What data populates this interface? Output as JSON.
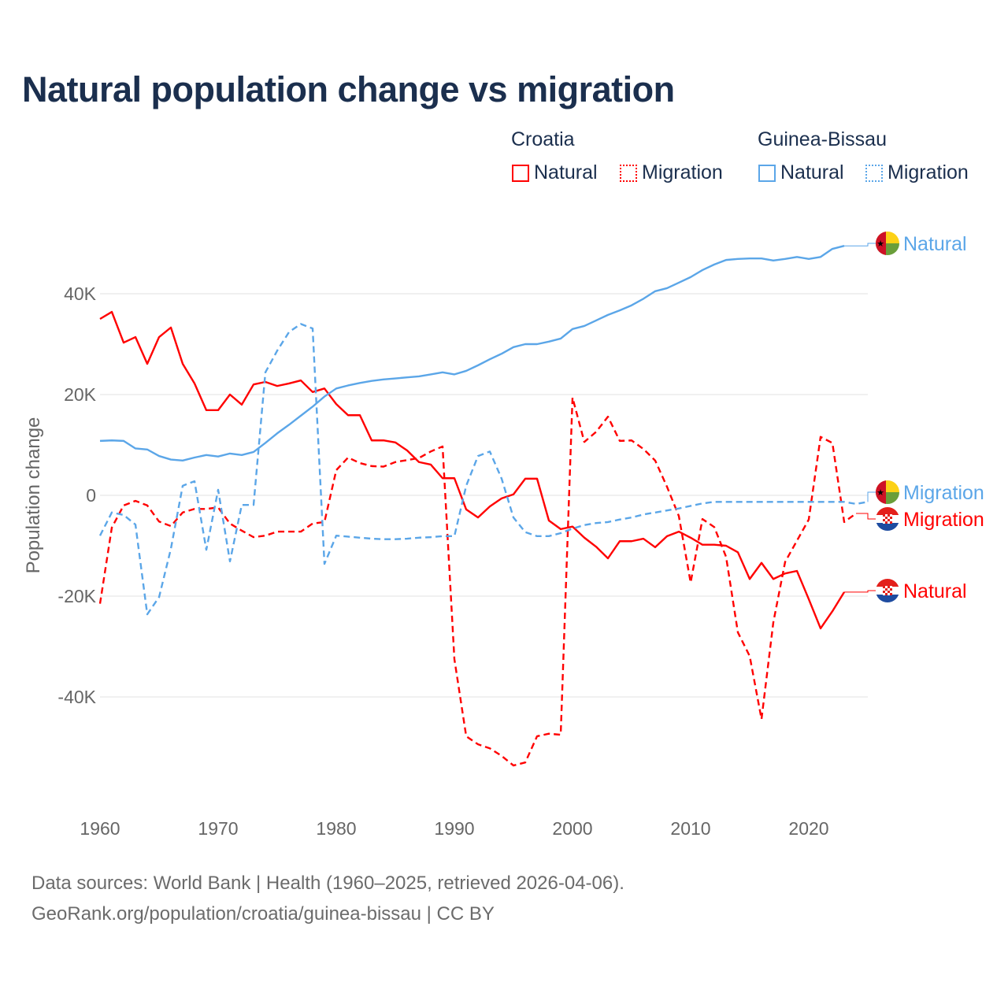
{
  "title": "Natural population change vs migration",
  "legend": {
    "groups": [
      {
        "name": "Croatia",
        "color": "#ff0000",
        "items": [
          "Natural",
          "Migration"
        ]
      },
      {
        "name": "Guinea-Bissau",
        "color": "#5ba6e8",
        "items": [
          "Natural",
          "Migration"
        ]
      }
    ]
  },
  "footer": {
    "line1": "Data sources: World Bank | Health (1960–2025, retrieved 2026-04-06).",
    "line2": "GeoRank.org/population/croatia/guinea-bissau | CC BY"
  },
  "chart_data": {
    "type": "line",
    "title": "Natural population change vs migration",
    "xlabel": "",
    "ylabel": "Population change",
    "xlim": [
      1960,
      2025
    ],
    "x_ticks": [
      1960,
      1970,
      1980,
      1990,
      2000,
      2010,
      2020
    ],
    "y_ticks": [
      {
        "v": 40000,
        "label": "40K"
      },
      {
        "v": 20000,
        "label": "20K"
      },
      {
        "v": 0,
        "label": "0"
      },
      {
        "v": -20000,
        "label": "-20K"
      },
      {
        "v": -40000,
        "label": "-40K"
      }
    ],
    "grid": true,
    "series": [
      {
        "name": "Croatia Natural",
        "country": "Croatia",
        "kind": "Natural",
        "color": "#ff0000",
        "dashed": false,
        "end_label": "Natural",
        "start_year": 1960,
        "values": [
          35000,
          36400,
          30300,
          31400,
          26100,
          31400,
          33300,
          26100,
          22200,
          16900,
          16900,
          20000,
          18000,
          22000,
          22500,
          21700,
          22200,
          22800,
          20500,
          21200,
          18100,
          15900,
          15900,
          10900,
          10900,
          10500,
          8900,
          6600,
          6100,
          3400,
          3400,
          -2800,
          -4400,
          -2200,
          -600,
          200,
          3300,
          3300,
          -5000,
          -6700,
          -6200,
          -8400,
          -10200,
          -12500,
          -9100,
          -9100,
          -8600,
          -10300,
          -8100,
          -7200,
          -8400,
          -9800,
          -9800,
          -10000,
          -11300,
          -16600,
          -13400,
          -16600,
          -15500,
          -15000,
          -20600,
          -26400,
          -23000,
          -19200
        ]
      },
      {
        "name": "Croatia Migration",
        "country": "Croatia",
        "kind": "Migration",
        "color": "#ff0000",
        "dashed": true,
        "end_label": "Migration",
        "start_year": 1960,
        "values": [
          -21500,
          -6400,
          -2000,
          -1100,
          -2000,
          -5200,
          -6100,
          -3400,
          -2700,
          -2700,
          -2400,
          -5600,
          -7000,
          -8300,
          -8000,
          -7200,
          -7200,
          -7200,
          -5600,
          -5300,
          5000,
          7500,
          6400,
          5800,
          5700,
          6600,
          7000,
          7400,
          8700,
          9700,
          -32500,
          -47800,
          -49400,
          -50200,
          -51700,
          -53600,
          -53000,
          -47800,
          -47300,
          -47500,
          19400,
          10600,
          12600,
          15600,
          10800,
          10900,
          9200,
          6900,
          1700,
          -4100,
          -17300,
          -4700,
          -6300,
          -12200,
          -27200,
          -31900,
          -44400,
          -25200,
          -13200,
          -9000,
          -4800,
          11600,
          10400,
          -5300,
          -3600
        ]
      },
      {
        "name": "Guinea-Bissau Natural",
        "country": "Guinea-Bissau",
        "kind": "Natural",
        "color": "#5ba6e8",
        "dashed": false,
        "end_label": "Natural",
        "start_year": 1960,
        "values": [
          10800,
          10900,
          10800,
          9300,
          9100,
          7800,
          7100,
          6900,
          7500,
          8000,
          7700,
          8300,
          8000,
          8600,
          10400,
          12300,
          14000,
          15800,
          17600,
          19600,
          21200,
          21800,
          22300,
          22700,
          23000,
          23200,
          23400,
          23600,
          24000,
          24400,
          24000,
          24700,
          25800,
          27000,
          28100,
          29400,
          30000,
          30000,
          30500,
          31100,
          33000,
          33600,
          34700,
          35800,
          36700,
          37700,
          39000,
          40500,
          41100,
          42200,
          43300,
          44700,
          45800,
          46700,
          46900,
          47000,
          47000,
          46600,
          46900,
          47300,
          46900,
          47300,
          48900,
          49500
        ]
      },
      {
        "name": "Guinea-Bissau Migration",
        "country": "Guinea-Bissau",
        "kind": "Migration",
        "color": "#5ba6e8",
        "dashed": true,
        "end_label": "Migration",
        "start_year": 1960,
        "values": [
          -8000,
          -3400,
          -3900,
          -5800,
          -23600,
          -20200,
          -10600,
          1900,
          2800,
          -10800,
          1100,
          -13100,
          -1900,
          -1900,
          24400,
          28700,
          32400,
          34000,
          33100,
          -13600,
          -8000,
          -8200,
          -8400,
          -8600,
          -8700,
          -8700,
          -8600,
          -8400,
          -8300,
          -8100,
          -8100,
          1900,
          7800,
          8700,
          3300,
          -4400,
          -7300,
          -8100,
          -8100,
          -7500,
          -6600,
          -5900,
          -5500,
          -5300,
          -4800,
          -4400,
          -3800,
          -3400,
          -3000,
          -2600,
          -2100,
          -1600,
          -1300,
          -1300,
          -1300,
          -1300,
          -1300,
          -1300,
          -1300,
          -1300,
          -1300,
          -1300,
          -1300,
          -1300,
          -1700,
          -1300
        ]
      }
    ]
  }
}
